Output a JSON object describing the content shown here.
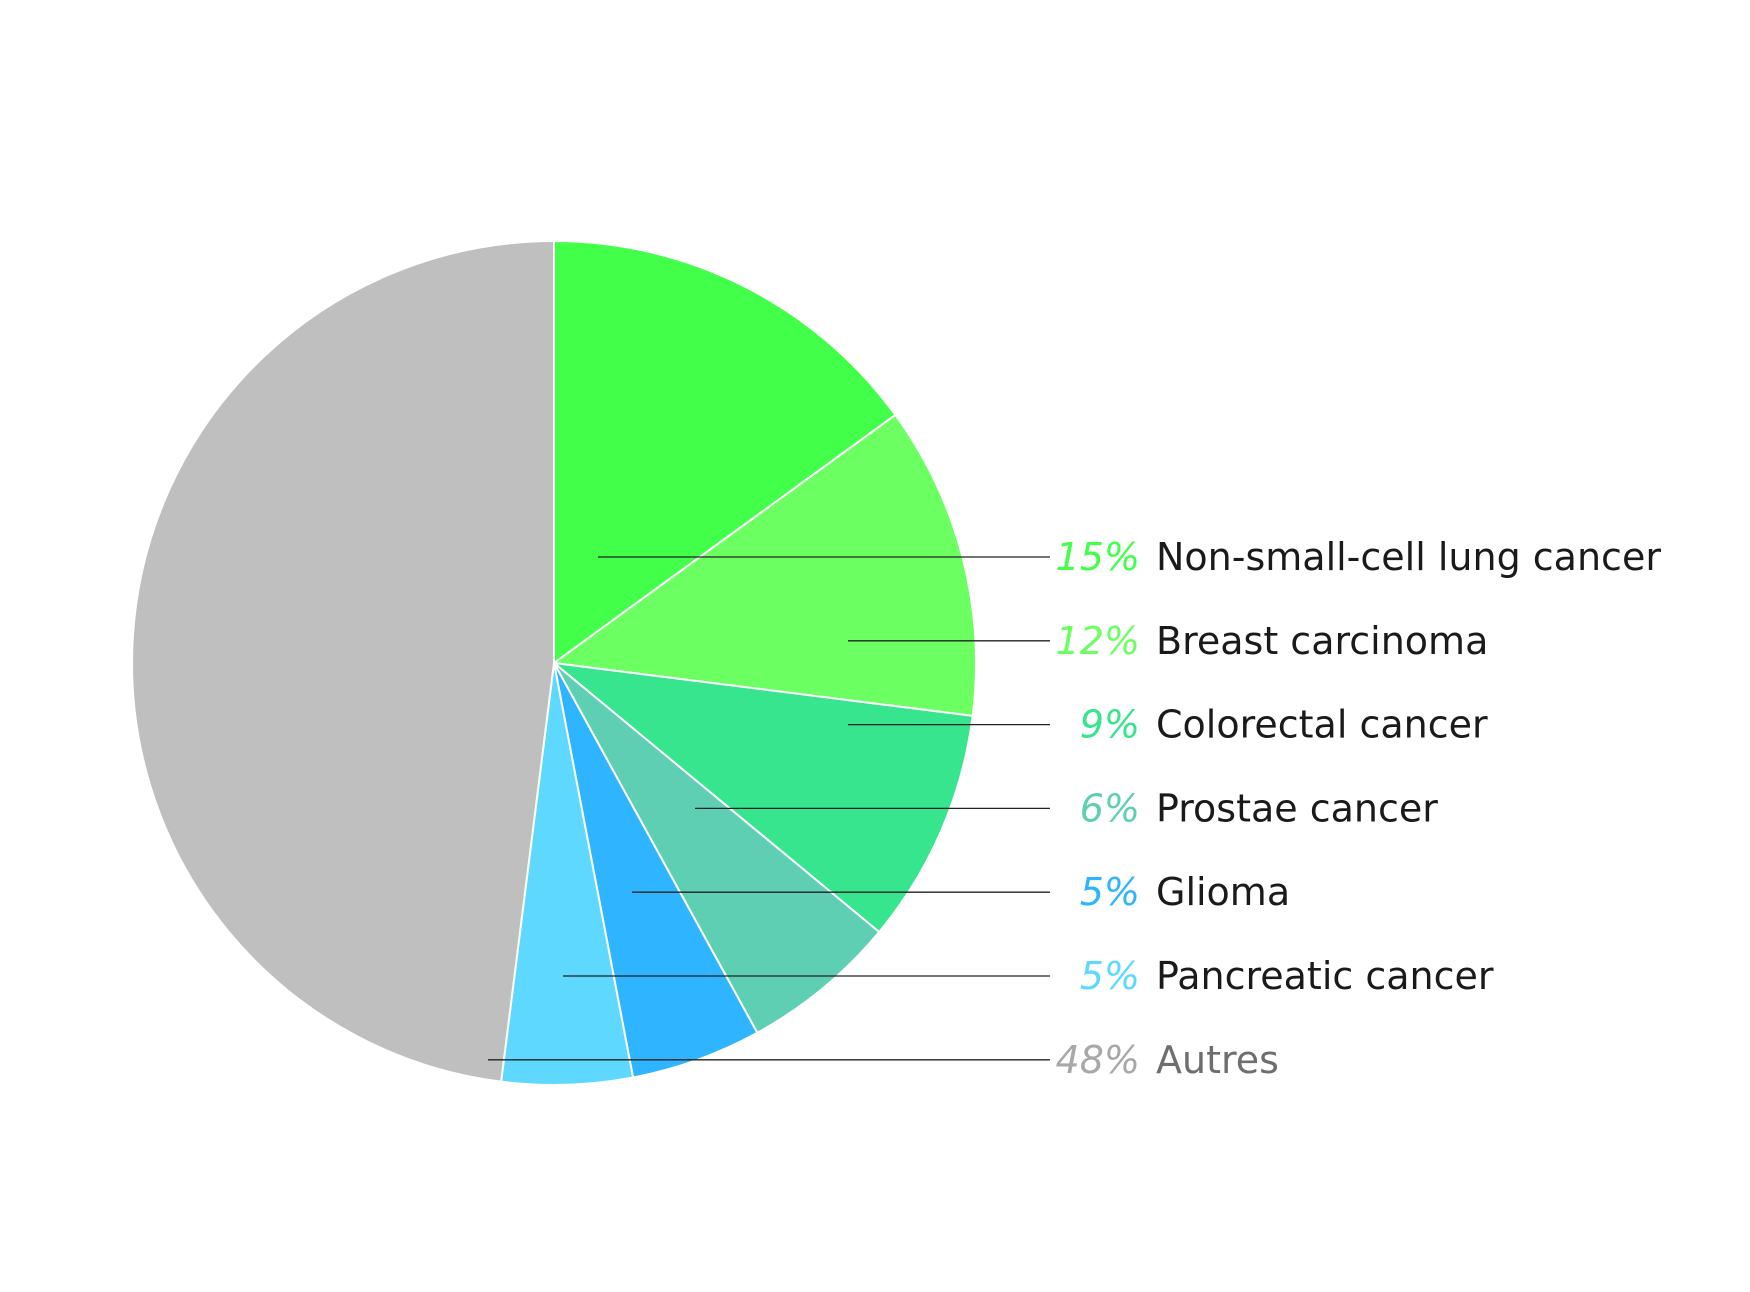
{
  "chart_data": {
    "type": "pie",
    "title": "",
    "slices": [
      {
        "label": "Non-small-cell lung cancer",
        "value": 15,
        "value_label": "15%",
        "color": "#42ff4a"
      },
      {
        "label": "Breast carcinoma",
        "value": 12,
        "value_label": "12%",
        "color": "#6bff61"
      },
      {
        "label": "Colorectal cancer",
        "value": 9,
        "value_label": "9%",
        "color": "#36e58e"
      },
      {
        "label": "Prostae cancer",
        "value": 6,
        "value_label": "6%",
        "color": "#5ecfb2"
      },
      {
        "label": "Glioma",
        "value": 5,
        "value_label": "5%",
        "color": "#2fb5ff"
      },
      {
        "label": "Pancreatic cancer",
        "value": 5,
        "value_label": "5%",
        "color": "#5ed8ff"
      },
      {
        "label": "Autres",
        "value": 48,
        "value_label": "48%",
        "color": "#bfbfbf",
        "label_color": "#a8a8a8"
      }
    ],
    "start_angle": "12 o'clock",
    "direction": "clockwise",
    "legend": "right, leader lines",
    "slice_border_color": "#ffffff",
    "leader_line_color": "#222222"
  }
}
